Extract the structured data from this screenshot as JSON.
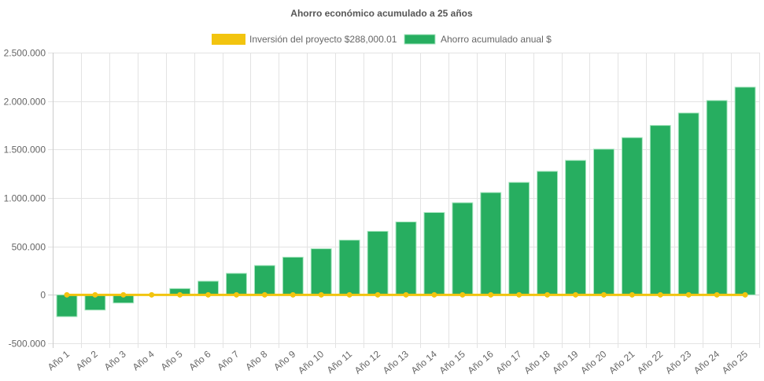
{
  "chart_data": {
    "type": "bar",
    "title": "Ahorro económico acumulado a 25 años",
    "legend_position": "top",
    "grid": true,
    "ylim": [
      -500000,
      2500000
    ],
    "yticks": [
      -500000,
      0,
      500000,
      1000000,
      1500000,
      2000000,
      2500000
    ],
    "ytick_labels": [
      "-500.000",
      "0",
      "500.000",
      "1.000.000",
      "1.500.000",
      "2.000.000",
      "2.500.000"
    ],
    "categories": [
      "Año 1",
      "Año 2",
      "Año 3",
      "Año 4",
      "Año 5",
      "Año 6",
      "Año 7",
      "Año 8",
      "Año 9",
      "Año 10",
      "Año 11",
      "Año 12",
      "Año 13",
      "Año 14",
      "Año 15",
      "Año 16",
      "Año 17",
      "Año 18",
      "Año 19",
      "Año 20",
      "Año 21",
      "Año 22",
      "Año 23",
      "Año 24",
      "Año 25"
    ],
    "series": [
      {
        "name": "Inversión del proyecto $288,000.01",
        "type": "line",
        "color": "#f2c40f",
        "values": [
          0,
          0,
          0,
          0,
          0,
          0,
          0,
          0,
          0,
          0,
          0,
          0,
          0,
          0,
          0,
          0,
          0,
          0,
          0,
          0,
          0,
          0,
          0,
          0,
          0
        ]
      },
      {
        "name": "Ahorro acumulado anual $",
        "type": "bar",
        "color": "#27ae60",
        "values": [
          -225000,
          -157000,
          -84000,
          -5000,
          65000,
          141000,
          222000,
          303000,
          389000,
          476000,
          565000,
          656000,
          753000,
          850000,
          951000,
          1056000,
          1161000,
          1275000,
          1388000,
          1504000,
          1623000,
          1749000,
          1877000,
          2006000,
          2144000
        ]
      }
    ]
  }
}
